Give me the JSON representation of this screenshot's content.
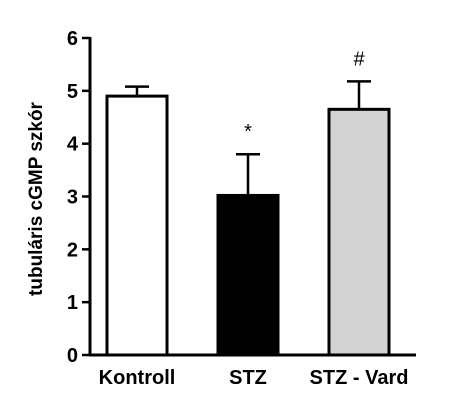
{
  "chart_data": {
    "type": "bar",
    "categories": [
      "Kontroll",
      "STZ",
      "STZ - Vard"
    ],
    "values": [
      4.9,
      3.02,
      4.65
    ],
    "error_upper": [
      5.08,
      3.8,
      5.18
    ],
    "annotations": [
      "",
      "*",
      "#"
    ],
    "bar_colors": [
      "#ffffff",
      "#000000",
      "#d3d3d3"
    ],
    "ylabel": "tubuláris cGMP szkór",
    "ylim": [
      0,
      6
    ],
    "yticks": [
      "0",
      "1",
      "2",
      "3",
      "4",
      "5",
      "6"
    ],
    "grid": false
  }
}
